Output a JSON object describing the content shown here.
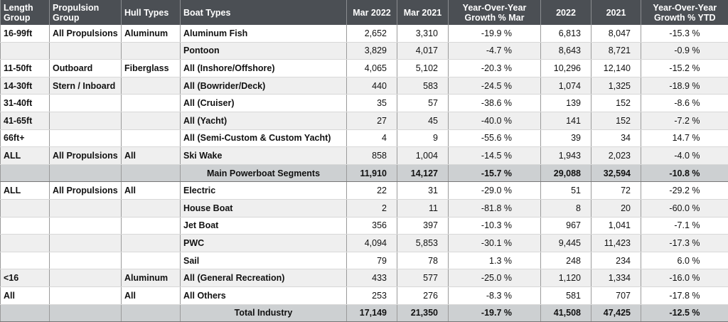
{
  "table": {
    "header": [
      "Length Group",
      "Propulsion Group",
      "Hull Types",
      "Boat Types",
      "Mar 2022",
      "Mar 2021",
      "Year-Over-Year Growth % Mar",
      "2022",
      "2021",
      "Year-Over-Year Growth % YTD"
    ],
    "rows": [
      [
        "16-99ft",
        "All Propulsions",
        "Aluminum",
        "Aluminum Fish",
        "2,652",
        "3,310",
        "-19.9 %",
        "6,813",
        "8,047",
        "-15.3 %"
      ],
      [
        null,
        null,
        null,
        "Pontoon",
        "3,829",
        "4,017",
        "-4.7 %",
        "8,643",
        "8,721",
        "-0.9 %"
      ],
      [
        "11-50ft",
        "Outboard",
        "Fiberglass",
        "All (Inshore/Offshore)",
        "4,065",
        "5,102",
        "-20.3 %",
        "10,296",
        "12,140",
        "-15.2 %"
      ],
      [
        "14-30ft",
        "Stern / Inboard",
        null,
        "All (Bowrider/Deck)",
        "440",
        "583",
        "-24.5 %",
        "1,074",
        "1,325",
        "-18.9 %"
      ],
      [
        "31-40ft",
        null,
        null,
        "All (Cruiser)",
        "35",
        "57",
        "-38.6 %",
        "139",
        "152",
        "-8.6 %"
      ],
      [
        "41-65ft",
        null,
        null,
        "All (Yacht)",
        "27",
        "45",
        "-40.0 %",
        "141",
        "152",
        "-7.2 %"
      ],
      [
        "66ft+",
        null,
        null,
        "All (Semi-Custom & Custom Yacht)",
        "4",
        "9",
        "-55.6 %",
        "39",
        "34",
        "14.7 %"
      ],
      [
        "ALL",
        "All Propulsions",
        "All",
        "Ski Wake",
        "858",
        "1,004",
        "-14.5 %",
        "1,943",
        "2,023",
        "-4.0 %"
      ],
      [
        null,
        null,
        null,
        "Main Powerboat Segments",
        "11,910",
        "14,127",
        "-15.7 %",
        "29,088",
        "32,594",
        "-10.8 %"
      ],
      [
        "ALL",
        "All Propulsions",
        "All",
        "Electric",
        "22",
        "31",
        "-29.0 %",
        "51",
        "72",
        "-29.2 %"
      ],
      [
        null,
        null,
        null,
        "House Boat",
        "2",
        "11",
        "-81.8 %",
        "8",
        "20",
        "-60.0 %"
      ],
      [
        null,
        null,
        null,
        "Jet Boat",
        "356",
        "397",
        "-10.3 %",
        "967",
        "1,041",
        "-7.1 %"
      ],
      [
        null,
        null,
        null,
        "PWC",
        "4,094",
        "5,853",
        "-30.1 %",
        "9,445",
        "11,423",
        "-17.3 %"
      ],
      [
        null,
        null,
        null,
        "Sail",
        "79",
        "78",
        "1.3 %",
        "248",
        "234",
        "6.0 %"
      ],
      [
        "<16",
        null,
        "Aluminum",
        "All (General Recreation)",
        "433",
        "577",
        "-25.0 %",
        "1,120",
        "1,334",
        "-16.0 %"
      ],
      [
        "All",
        null,
        "All",
        "All Others",
        "253",
        "276",
        "-8.3 %",
        "581",
        "707",
        "-17.8 %"
      ],
      [
        null,
        null,
        null,
        "Total Industry",
        "17,149",
        "21,350",
        "-19.7 %",
        "41,508",
        "47,425",
        "-12.5 %"
      ]
    ]
  }
}
